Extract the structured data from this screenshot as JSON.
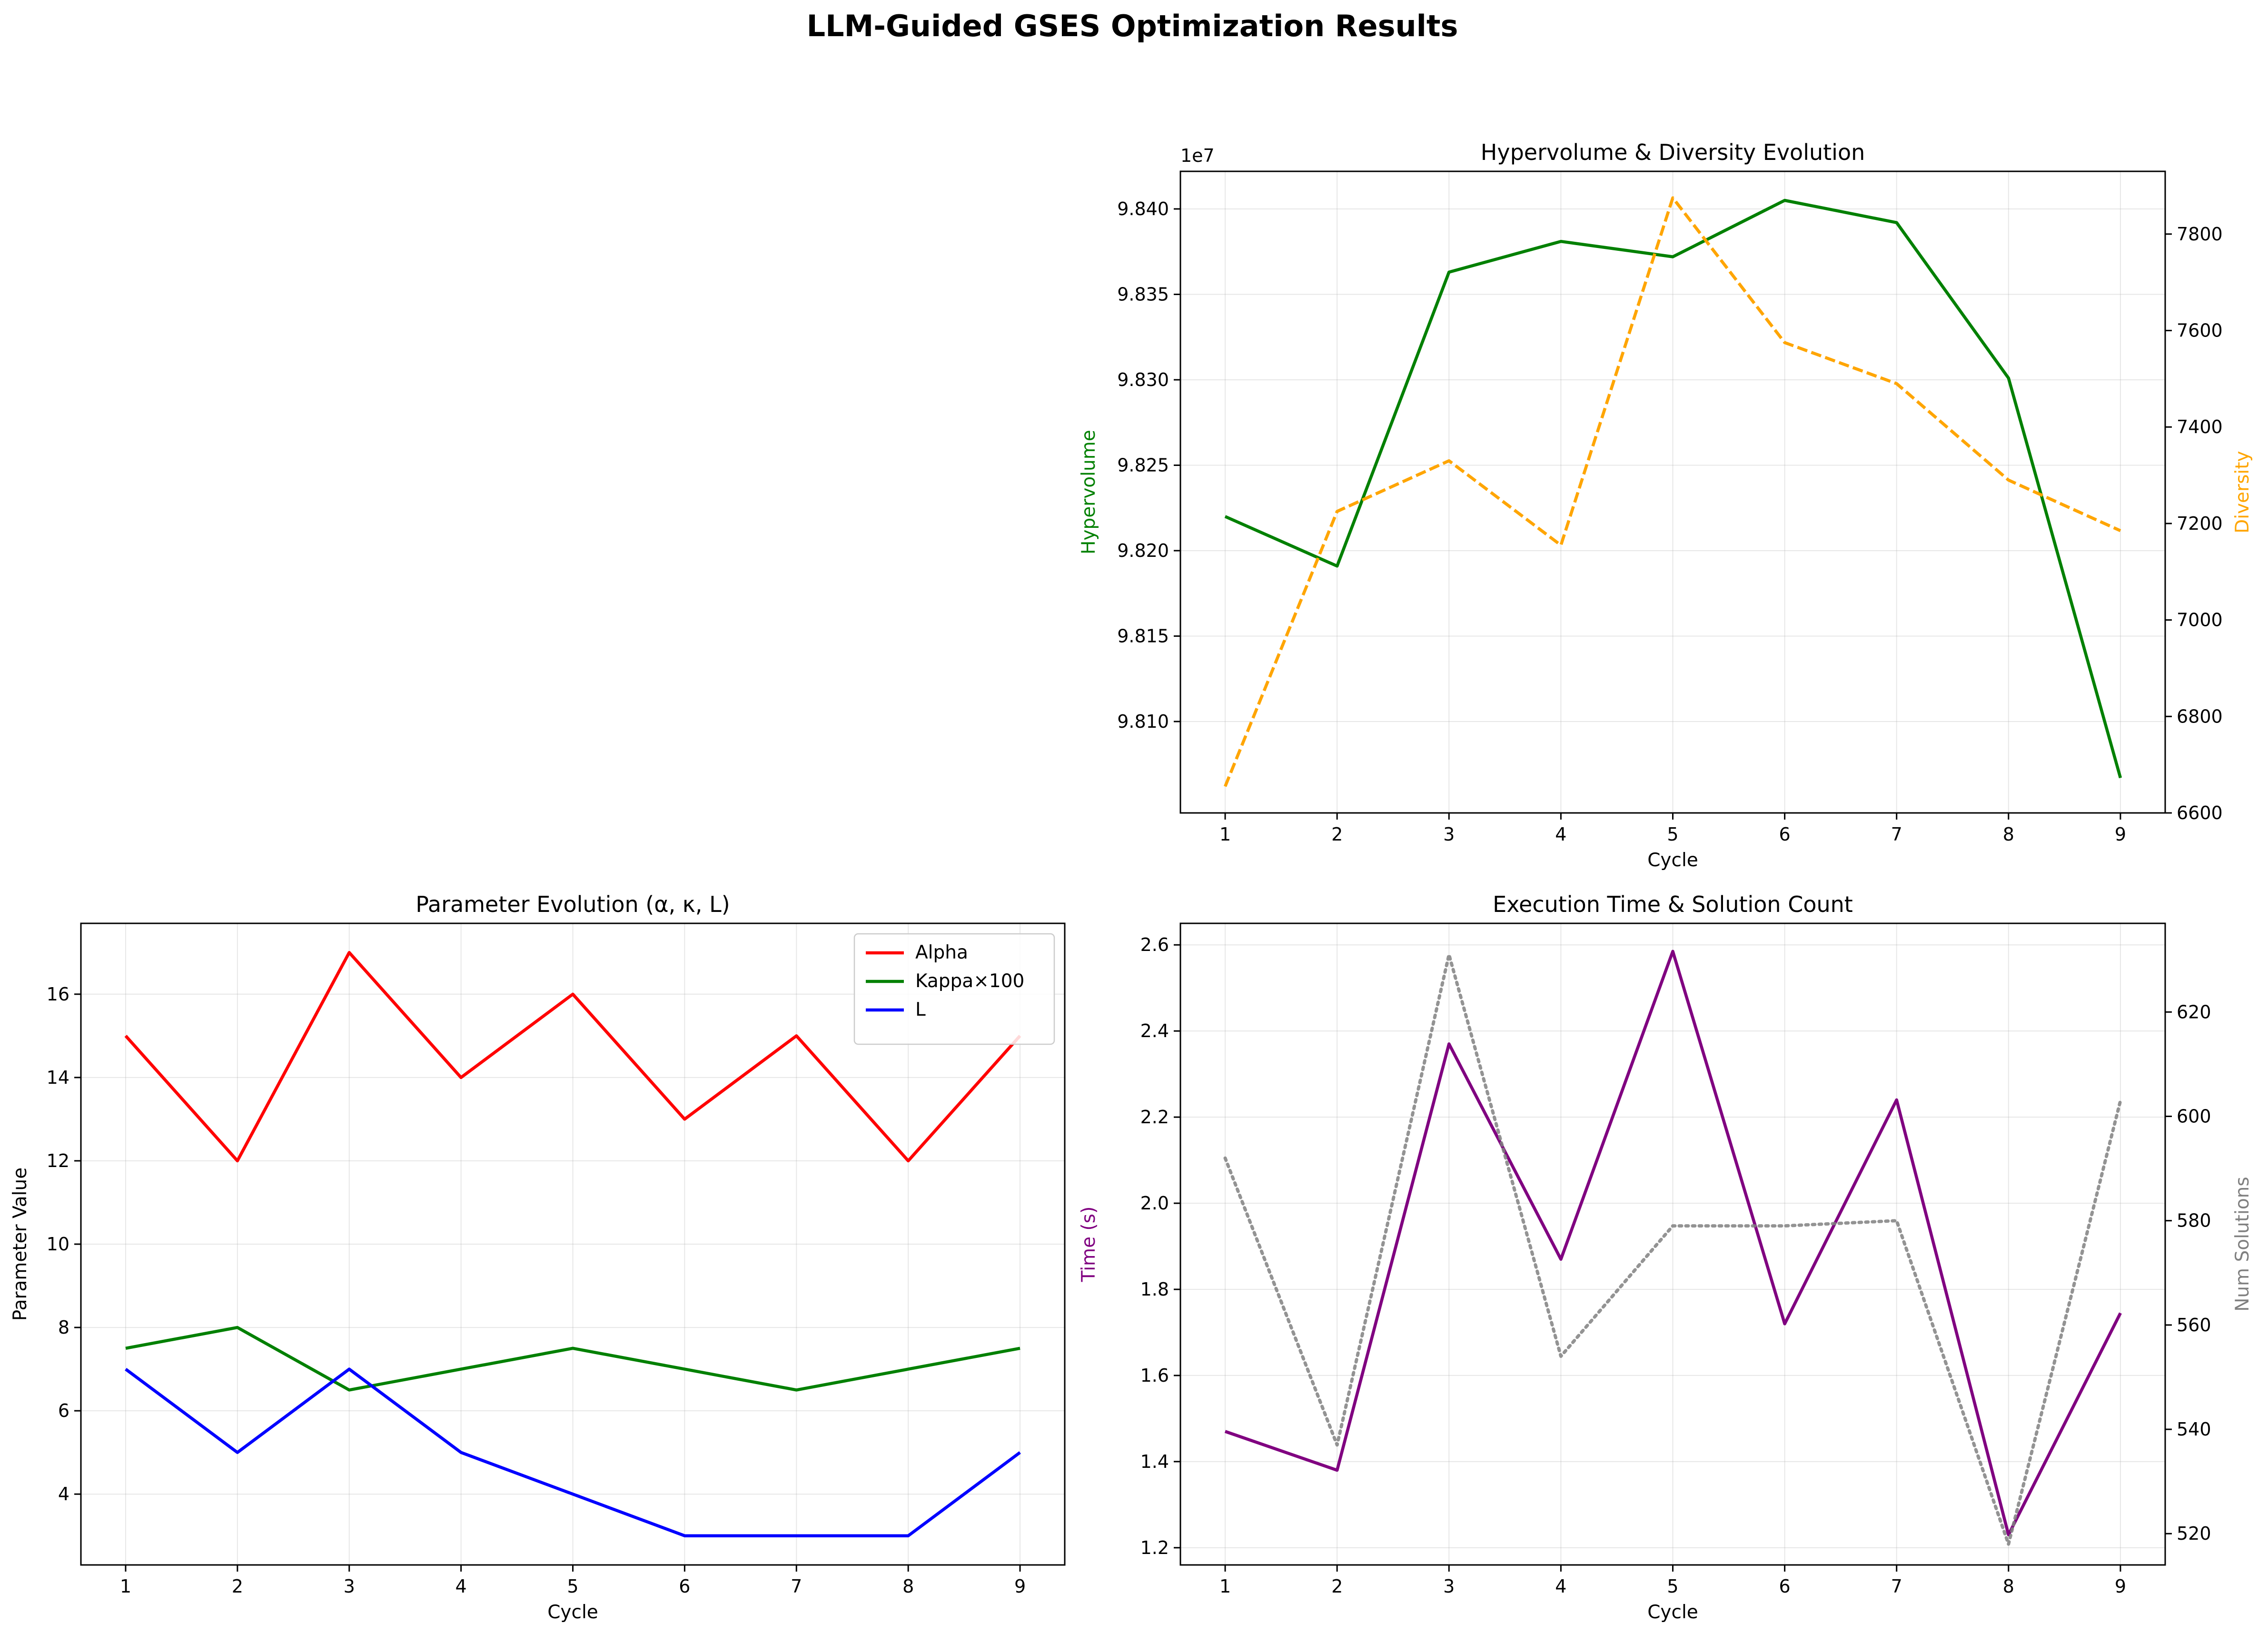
{
  "figure": {
    "title": "LLM-Guided GSES Optimization Results"
  },
  "chart_data": [
    {
      "id": "hypervolume",
      "type": "line",
      "title": "Hypervolume & Diversity Evolution",
      "xlabel": "Cycle",
      "ylabel": "Hypervolume",
      "ylabel_right": "Diversity",
      "y_offset_label": "1e7",
      "x": [
        1,
        2,
        3,
        4,
        5,
        6,
        7,
        8,
        9
      ],
      "xlim": [
        0.6,
        9.4
      ],
      "ylim": [
        98.0465,
        98.422
      ],
      "ylim_right": [
        6600,
        7930
      ],
      "y_ticks": [
        98.1,
        98.15,
        98.2,
        98.25,
        98.3,
        98.35,
        98.4
      ],
      "y_tick_labels": [
        "9.810",
        "9.815",
        "9.820",
        "9.825",
        "9.830",
        "9.835",
        "9.840"
      ],
      "y_ticks_right": [
        6600,
        6800,
        7000,
        7200,
        7400,
        7600,
        7800
      ],
      "grid": true,
      "series": [
        {
          "name": "Hypervolume",
          "axis": "left",
          "color": "#008000",
          "style": "solid",
          "values": [
            98.22,
            98.191,
            98.363,
            98.381,
            98.372,
            98.405,
            98.392,
            98.301,
            98.067
          ]
        },
        {
          "name": "Diversity",
          "axis": "right",
          "color": "#FFA500",
          "style": "dashed",
          "values": [
            6655,
            7225,
            7330,
            7155,
            7875,
            7575,
            7490,
            7290,
            7185
          ]
        }
      ]
    },
    {
      "id": "parameters",
      "type": "line",
      "title": "Parameter Evolution (α, κ, L)",
      "xlabel": "Cycle",
      "ylabel": "Parameter Value",
      "x": [
        1,
        2,
        3,
        4,
        5,
        6,
        7,
        8,
        9
      ],
      "xlim": [
        0.6,
        9.4
      ],
      "ylim": [
        2.3,
        17.7
      ],
      "y_ticks": [
        4,
        6,
        8,
        10,
        12,
        14,
        16
      ],
      "grid": true,
      "legend": "top-right",
      "series": [
        {
          "name": "Alpha",
          "color": "#FF0000",
          "style": "solid",
          "values": [
            15,
            12,
            17,
            14,
            16,
            13,
            15,
            12,
            15
          ]
        },
        {
          "name": "Kappa×100",
          "color": "#008000",
          "style": "solid",
          "values": [
            7.5,
            8,
            6.5,
            7,
            7.5,
            7,
            6.5,
            7,
            7.5
          ]
        },
        {
          "name": "L",
          "color": "#0000FF",
          "style": "solid",
          "values": [
            7,
            5,
            7,
            5,
            4,
            3,
            3,
            3,
            5
          ]
        }
      ]
    },
    {
      "id": "execution",
      "type": "line",
      "title": "Execution Time & Solution Count",
      "xlabel": "Cycle",
      "ylabel": "Time (s)",
      "ylabel_right": "Num Solutions",
      "x": [
        1,
        2,
        3,
        4,
        5,
        6,
        7,
        8,
        9
      ],
      "xlim": [
        0.6,
        9.4
      ],
      "ylim": [
        1.16,
        2.65
      ],
      "ylim_right": [
        514,
        637
      ],
      "y_ticks": [
        1.2,
        1.4,
        1.6,
        1.8,
        2.0,
        2.2,
        2.4,
        2.6
      ],
      "y_tick_labels": [
        "1.2",
        "1.4",
        "1.6",
        "1.8",
        "2.0",
        "2.2",
        "2.4",
        "2.6"
      ],
      "y_ticks_right": [
        520,
        540,
        560,
        580,
        600,
        620
      ],
      "grid": true,
      "series": [
        {
          "name": "Time (s)",
          "axis": "left",
          "color": "#800080",
          "style": "solid",
          "values": [
            1.47,
            1.38,
            2.37,
            1.87,
            2.585,
            1.72,
            2.24,
            1.23,
            1.745
          ]
        },
        {
          "name": "Num Solutions",
          "axis": "right",
          "color": "#808080",
          "style": "dotted",
          "values": [
            592,
            537,
            631,
            554,
            579,
            579,
            580,
            518,
            603
          ]
        }
      ]
    }
  ]
}
